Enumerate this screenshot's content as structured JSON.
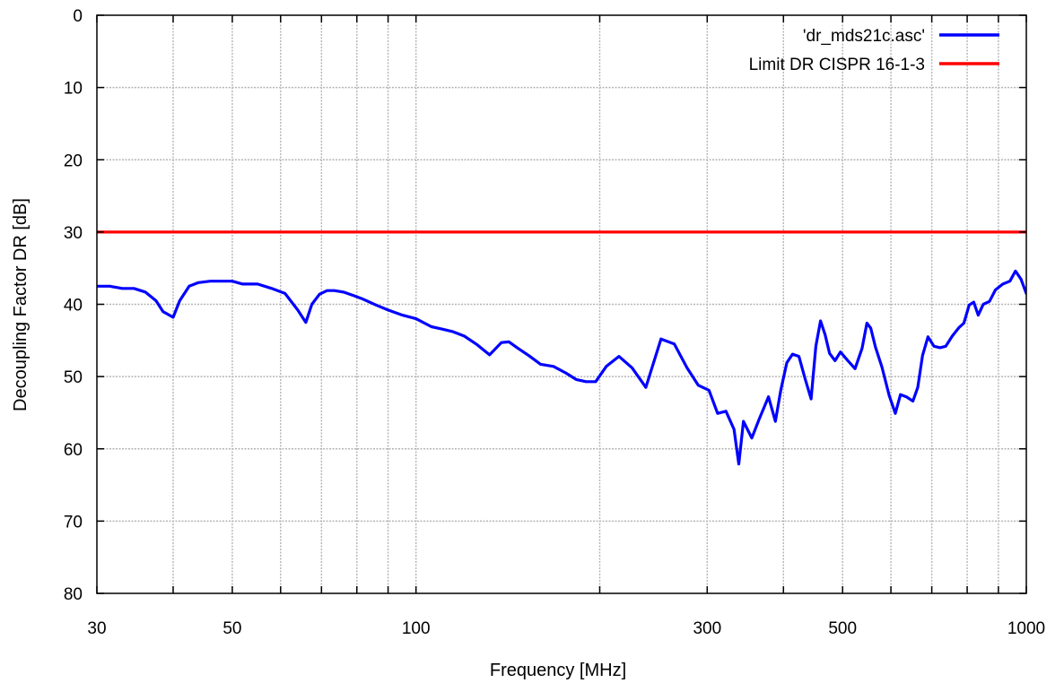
{
  "chart_data": {
    "type": "line",
    "title": "",
    "xlabel": "Frequency [MHz]",
    "ylabel": "Decoupling Factor DR [dB]",
    "x_scale": "log",
    "xlim": [
      30,
      1000
    ],
    "ylim": [
      0,
      80
    ],
    "y_inverted": true,
    "grid": true,
    "legend_position": "top-right",
    "x_ticks": [
      30,
      50,
      100,
      300,
      500,
      1000
    ],
    "x_tick_labels": [
      "30",
      "50",
      "100",
      "300",
      "500",
      "1000"
    ],
    "x_grid": [
      30,
      40,
      50,
      60,
      70,
      80,
      90,
      100,
      200,
      300,
      400,
      500,
      600,
      700,
      800,
      900,
      1000
    ],
    "y_ticks": [
      0,
      10,
      20,
      30,
      40,
      50,
      60,
      70,
      80
    ],
    "y_tick_labels": [
      "0",
      "10",
      "20",
      "30",
      "40",
      "50",
      "60",
      "70",
      "80"
    ],
    "series": [
      {
        "name": "'dr_mds21c.asc'",
        "color": "#0000ff",
        "x": [
          30,
          31.5,
          33,
          34.5,
          36,
          37.5,
          38.5,
          40,
          41,
          42.5,
          44,
          46,
          48,
          50,
          52,
          55,
          58,
          61,
          64,
          66,
          67.5,
          69.5,
          71.5,
          73.5,
          76,
          79,
          82,
          86,
          90,
          95,
          100,
          106,
          110,
          115,
          120,
          126,
          132,
          138,
          142,
          147,
          153,
          160,
          168,
          176,
          183,
          190,
          197,
          205,
          215,
          226,
          238,
          252,
          265,
          278,
          290,
          302,
          312,
          322,
          332,
          338,
          344,
          355,
          365,
          378,
          388,
          396,
          405,
          414,
          424,
          434,
          444,
          452,
          460,
          468,
          476,
          486,
          496,
          510,
          524,
          538,
          548,
          556,
          566,
          580,
          596,
          610,
          622,
          636,
          652,
          664,
          676,
          690,
          706,
          722,
          738,
          756,
          776,
          790,
          806,
          820,
          834,
          850,
          870,
          890,
          915,
          940,
          960,
          980,
          1000
        ],
        "values": [
          37.5,
          37.5,
          37.8,
          37.8,
          38.3,
          39.5,
          41,
          41.8,
          39.5,
          37.5,
          37,
          36.8,
          36.8,
          36.8,
          37.2,
          37.2,
          37.8,
          38.5,
          40.8,
          42.5,
          40,
          38.6,
          38.1,
          38.1,
          38.3,
          38.8,
          39.3,
          40.1,
          40.8,
          41.5,
          42,
          43.1,
          43.4,
          43.8,
          44.4,
          45.6,
          47,
          45.3,
          45.2,
          46.1,
          47.1,
          48.3,
          48.6,
          49.5,
          50.4,
          50.7,
          50.7,
          48.6,
          47.2,
          48.8,
          51.5,
          44.8,
          45.5,
          48.8,
          51.2,
          51.9,
          55.1,
          54.8,
          57.3,
          62.1,
          56.2,
          58.5,
          55.9,
          52.8,
          56.2,
          51.9,
          48.1,
          46.9,
          47.2,
          50.3,
          53.1,
          45.8,
          42.3,
          44.2,
          46.8,
          47.8,
          46.6,
          47.8,
          48.9,
          46.1,
          42.6,
          43.3,
          45.9,
          48.7,
          52.6,
          55.1,
          52.5,
          52.8,
          53.4,
          51.5,
          47.1,
          44.5,
          45.8,
          46,
          45.8,
          44.4,
          43.2,
          42.6,
          40.1,
          39.7,
          41.5,
          40,
          39.6,
          38,
          37.2,
          36.8,
          35.4,
          36.5,
          38.5
        ]
      },
      {
        "name": "Limit DR CISPR 16-1-3",
        "color": "#ff0000",
        "x": [
          30,
          1000
        ],
        "values": [
          30,
          30
        ]
      }
    ]
  }
}
